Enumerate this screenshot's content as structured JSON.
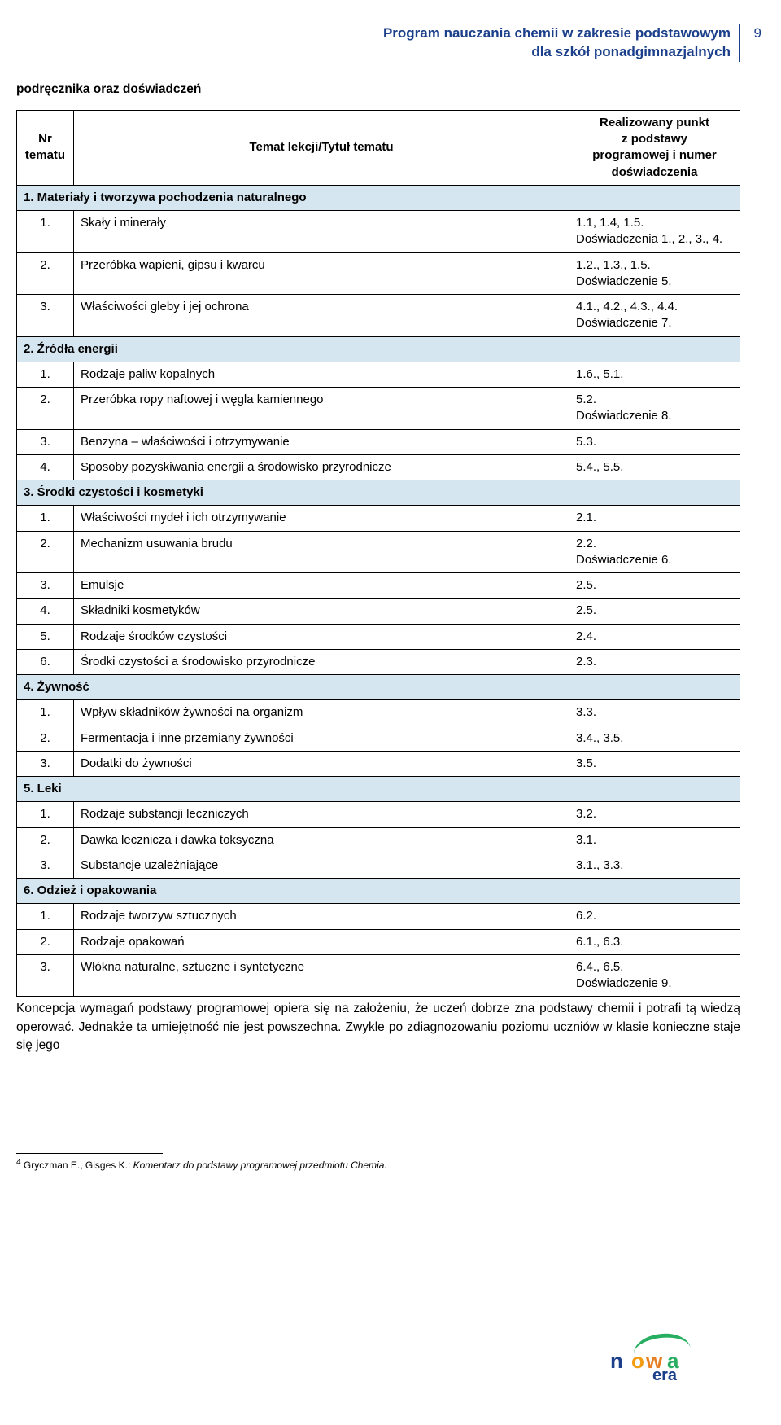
{
  "header": {
    "line1": "Program nauczania chemii w zakresie podstawowym",
    "line2": "dla szkół ponadgimnazjalnych",
    "page_number": "9"
  },
  "context_line": "podręcznika oraz doświadczeń",
  "table": {
    "head": {
      "col1_l1": "Nr",
      "col1_l2": "tematu",
      "col2": "Temat lekcji/Tytuł tematu",
      "col3_l1": "Realizowany punkt",
      "col3_l2": "z podstawy",
      "col3_l3": "programowej i numer",
      "col3_l4": "doświadczenia"
    },
    "s1": {
      "title": "1. Materiały i tworzywa pochodzenia naturalnego",
      "r1": {
        "n": "1.",
        "t": "Skały i minerały",
        "p": "1.1, 1.4, 1.5.\nDoświadczenia 1., 2., 3., 4."
      },
      "r2": {
        "n": "2.",
        "t": "Przeróbka wapieni, gipsu i kwarcu",
        "p": "1.2., 1.3., 1.5.\nDoświadczenie 5."
      },
      "r3": {
        "n": "3.",
        "t": "Właściwości gleby i jej ochrona",
        "p": "4.1., 4.2., 4.3., 4.4.\nDoświadczenie 7."
      }
    },
    "s2": {
      "title": "2. Źródła energii",
      "r1": {
        "n": "1.",
        "t": "Rodzaje paliw kopalnych",
        "p": "1.6., 5.1."
      },
      "r2": {
        "n": "2.",
        "t": "Przeróbka ropy naftowej i węgla kamiennego",
        "p": "5.2.\nDoświadczenie 8."
      },
      "r3": {
        "n": "3.",
        "t": "Benzyna – właściwości i otrzymywanie",
        "p": "5.3."
      },
      "r4": {
        "n": "4.",
        "t": "Sposoby pozyskiwania energii a środowisko przyrodnicze",
        "p": "5.4., 5.5."
      }
    },
    "s3": {
      "title": "3. Środki czystości i kosmetyki",
      "r1": {
        "n": "1.",
        "t": "Właściwości mydeł i ich otrzymywanie",
        "p": "2.1."
      },
      "r2": {
        "n": "2.",
        "t": "Mechanizm usuwania brudu",
        "p": "2.2.\nDoświadczenie 6."
      },
      "r3": {
        "n": "3.",
        "t": "Emulsje",
        "p": "2.5."
      },
      "r4": {
        "n": "4.",
        "t": "Składniki kosmetyków",
        "p": "2.5."
      },
      "r5": {
        "n": "5.",
        "t": "Rodzaje środków czystości",
        "p": "2.4."
      },
      "r6": {
        "n": "6.",
        "t": "Środki czystości a środowisko przyrodnicze",
        "p": "2.3."
      }
    },
    "s4": {
      "title": "4. Żywność",
      "r1": {
        "n": "1.",
        "t": "Wpływ składników żywności na organizm",
        "p": "3.3."
      },
      "r2": {
        "n": "2.",
        "t": "Fermentacja i inne przemiany żywności",
        "p": "3.4., 3.5."
      },
      "r3": {
        "n": "3.",
        "t": "Dodatki do żywności",
        "p": "3.5."
      }
    },
    "s5": {
      "title": "5. Leki",
      "r1": {
        "n": "1.",
        "t": "Rodzaje substancji leczniczych",
        "p": "3.2."
      },
      "r2": {
        "n": "2.",
        "t": "Dawka lecznicza i dawka toksyczna",
        "p": "3.1."
      },
      "r3": {
        "n": "3.",
        "t": "Substancje uzależniające",
        "p": "3.1., 3.3."
      }
    },
    "s6": {
      "title": "6. Odzież i opakowania",
      "r1": {
        "n": "1.",
        "t": "Rodzaje tworzyw sztucznych",
        "p": "6.2."
      },
      "r2": {
        "n": "2.",
        "t": "Rodzaje opakowań",
        "p": "6.1., 6.3."
      },
      "r3": {
        "n": "3.",
        "t": "Włókna naturalne, sztuczne i syntetyczne",
        "p": "6.4., 6.5.\nDoświadczenie 9."
      }
    }
  },
  "paragraph": "Koncepcja wymagań podstawy programowej opiera się na założeniu, że uczeń dobrze zna podstawy chemii i potrafi tą wiedzą operować. Jednakże ta umiejętność nie jest po­wszechna. Zwykle po zdiagnozowaniu poziomu uczniów w klasie konieczne staje się jego",
  "footnote": {
    "num": "4",
    "authors": "Gryczman E., Gisges K.: ",
    "title": "Komentarz do podstawy programowej przedmiotu Chemia."
  },
  "colors": {
    "brand_blue": "#1b3f8b",
    "section_bg": "#d6e6f0",
    "border": "#000000"
  }
}
